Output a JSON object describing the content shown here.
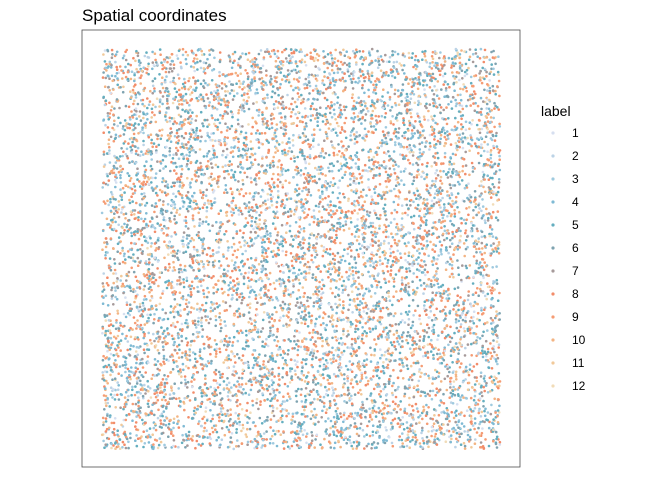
{
  "chart_data": {
    "type": "scatter",
    "title": "Spatial coordinates",
    "xlabel": "",
    "ylabel": "",
    "axes_visible": false,
    "grid": false,
    "panel_border": true,
    "legend": {
      "title": "label",
      "placement": "right",
      "entries": [
        "1",
        "2",
        "3",
        "4",
        "5",
        "6",
        "7",
        "8",
        "9",
        "10",
        "11",
        "12"
      ]
    },
    "colors": [
      "#d6dff0",
      "#bcd3e6",
      "#9fcadf",
      "#7fbad4",
      "#64aebf",
      "#7fa3b0",
      "#a69a9a",
      "#f28c6a",
      "#f59c74",
      "#f3b483",
      "#f1c99a",
      "#f1dcb8"
    ],
    "xlim": [
      0,
      1
    ],
    "ylim": [
      0,
      1
    ],
    "n_points_approx": 9000,
    "distribution": "uniform random over the unit square, labels 1–12 mixed throughout"
  }
}
